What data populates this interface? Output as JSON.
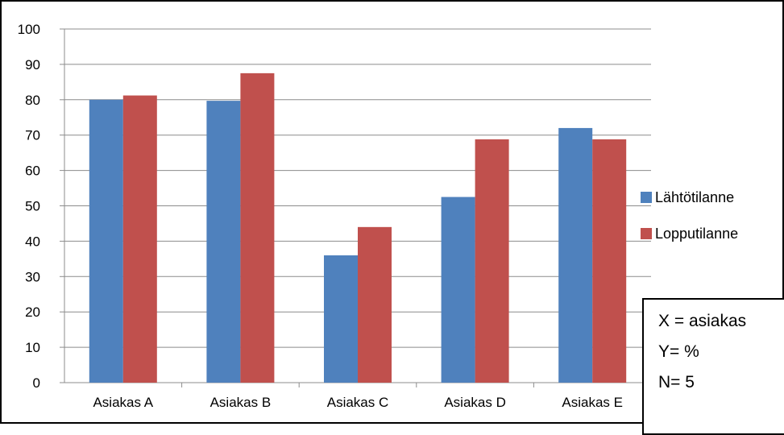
{
  "chart_data": {
    "type": "bar",
    "categories": [
      "Asiakas A",
      "Asiakas B",
      "Asiakas C",
      "Asiakas D",
      "Asiakas E"
    ],
    "series": [
      {
        "name": "Lähtötilanne",
        "color": "#4F81BD",
        "values": [
          80,
          79.7,
          36,
          52.5,
          72
        ]
      },
      {
        "name": "Lopputilanne",
        "color": "#C0504D",
        "values": [
          81.2,
          87.5,
          44,
          68.8,
          68.8
        ]
      }
    ],
    "ylim": [
      0,
      100
    ],
    "yticks": [
      "0",
      "10",
      "20",
      "30",
      "40",
      "50",
      "60",
      "70",
      "80",
      "90",
      "100"
    ],
    "grid": true,
    "legend_position": "right"
  },
  "note": {
    "line1": "X = asiakas",
    "line2": "Y= %",
    "line3": "N= 5"
  }
}
